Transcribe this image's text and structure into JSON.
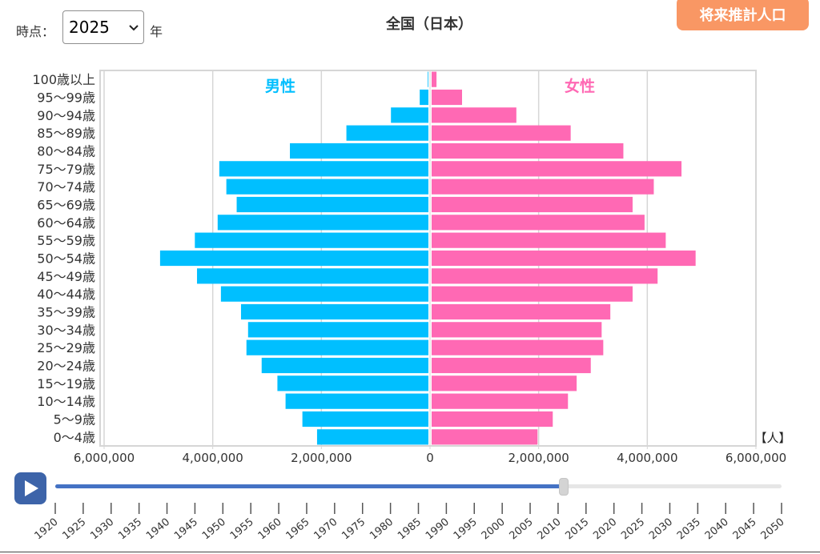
{
  "controls": {
    "time_label": "時点：",
    "selected_year": "2025",
    "year_unit": "年",
    "future_button": "将来推計人口",
    "play_icon": "play-icon",
    "slider_progress": 0.7
  },
  "timeline": {
    "years": [
      "1920",
      "1925",
      "1930",
      "1935",
      "1940",
      "1945",
      "1950",
      "1955",
      "1960",
      "1965",
      "1970",
      "1975",
      "1980",
      "1985",
      "1990",
      "1995",
      "2000",
      "2005",
      "2010",
      "2015",
      "2020",
      "2025",
      "2030",
      "2035",
      "2040",
      "2045",
      "2050"
    ]
  },
  "chart_data": {
    "type": "bar",
    "title": "全国（日本）",
    "unit": "【人】",
    "male_label": "男性",
    "female_label": "女性",
    "colors": {
      "male": "#00bfff",
      "female": "#ff69b4"
    },
    "xlim": [
      -6000000,
      6000000
    ],
    "x_ticks": [
      "6,000,000",
      "4,000,000",
      "2,000,000",
      "0",
      "2,000,000",
      "4,000,000",
      "6,000,000"
    ],
    "categories": [
      "100歳以上",
      "95～99歳",
      "90～94歳",
      "85～89歳",
      "80～84歳",
      "75～79歳",
      "70～74歳",
      "65～69歳",
      "60～64歳",
      "55～59歳",
      "50～54歳",
      "45～49歳",
      "40～44歳",
      "35～39歳",
      "30～34歳",
      "25～29歳",
      "20～24歳",
      "15～19歳",
      "10～14歳",
      "5～9歳",
      "0～4歳"
    ],
    "series": [
      {
        "name": "男性",
        "values": [
          12000,
          160000,
          690000,
          1510000,
          2550000,
          3850000,
          3720000,
          3530000,
          3880000,
          4300000,
          4940000,
          4260000,
          3820000,
          3450000,
          3320000,
          3350000,
          3070000,
          2780000,
          2630000,
          2320000,
          2050000
        ]
      },
      {
        "name": "女性",
        "values": [
          90000,
          560000,
          1560000,
          2560000,
          3530000,
          4600000,
          4090000,
          3700000,
          3920000,
          4310000,
          4860000,
          4160000,
          3700000,
          3290000,
          3130000,
          3160000,
          2930000,
          2670000,
          2510000,
          2230000,
          1950000
        ]
      }
    ]
  }
}
